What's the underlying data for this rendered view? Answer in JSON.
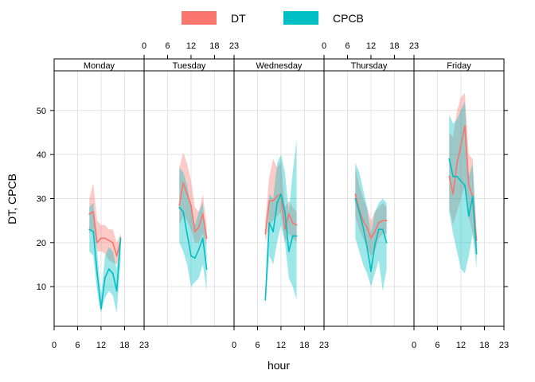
{
  "chart_data": {
    "type": "line",
    "panel_layout": "5 panels side by side, one per weekday, shared y axis",
    "xlabel": "hour",
    "ylabel": "DT, CPCB",
    "xlim": [
      0,
      23
    ],
    "ylim": [
      1,
      59
    ],
    "x_ticks": [
      0,
      6,
      12,
      18,
      23
    ],
    "y_ticks": [
      10,
      20,
      30,
      40,
      50
    ],
    "grid": true,
    "legend_position": "top",
    "legend": [
      {
        "label": "DT",
        "color": "#F8766D"
      },
      {
        "label": "CPCB",
        "color": "#00BFC4"
      }
    ],
    "colors": {
      "DT_line": "#F8766D",
      "DT_band": "#F8766D",
      "CPCB_line": "#00BFC4",
      "CPCB_band": "#00BFC4"
    },
    "panels": [
      {
        "name": "Monday",
        "series": [
          {
            "name": "DT",
            "x": [
              9,
              10,
              11,
              12,
              13,
              14,
              15,
              16,
              17
            ],
            "values": [
              26.5,
              27,
              20,
              21,
              21,
              20.5,
              20,
              17,
              20.5
            ],
            "lower": [
              22,
              23,
              18,
              18,
              17.5,
              16,
              15.5,
              15,
              17.5
            ],
            "upper": [
              30,
              33.5,
              25,
              24,
              24,
              23,
              23,
              20,
              22
            ]
          },
          {
            "name": "CPCB",
            "x": [
              9,
              10,
              11,
              12,
              13,
              14,
              15,
              16,
              17
            ],
            "values": [
              23,
              22.5,
              13,
              5,
              12,
              14,
              13,
              9,
              21
            ],
            "lower": [
              18,
              17,
              9,
              4,
              7.5,
              9,
              8,
              4,
              16
            ],
            "upper": [
              28,
              29,
              18,
              8,
              17,
              19,
              18,
              14,
              22
            ]
          }
        ]
      },
      {
        "name": "Tuesday",
        "series": [
          {
            "name": "DT",
            "x": [
              9,
              10,
              11,
              12,
              13,
              14,
              15,
              16
            ],
            "values": [
              28.5,
              33.5,
              31,
              28.5,
              22.5,
              23.5,
              26.5,
              21
            ],
            "lower": [
              24,
              26,
              25,
              23,
              20,
              20,
              22,
              19
            ],
            "upper": [
              37,
              40.5,
              38,
              34,
              28,
              27,
              31,
              24
            ]
          },
          {
            "name": "CPCB",
            "x": [
              9,
              10,
              11,
              12,
              13,
              14,
              15,
              16
            ],
            "values": [
              28,
              27,
              22,
              17,
              16.5,
              18.5,
              21,
              14
            ],
            "lower": [
              20,
              18,
              15,
              10,
              11,
              12,
              15,
              9
            ],
            "upper": [
              37,
              36,
              33,
              28,
              24,
              27,
              29,
              18
            ]
          }
        ]
      },
      {
        "name": "Wednesday",
        "series": [
          {
            "name": "DT",
            "x": [
              8,
              9,
              10,
              11,
              12,
              13,
              14,
              15,
              16
            ],
            "values": [
              22,
              29.5,
              29.5,
              30.5,
              31,
              23,
              26.5,
              24.5,
              24
            ],
            "lower": [
              20,
              24,
              25,
              26,
              27,
              20,
              22,
              21,
              20
            ],
            "upper": [
              25,
              35,
              39,
              37,
              38.5,
              28,
              29.5,
              28,
              27
            ]
          },
          {
            "name": "CPCB",
            "x": [
              8,
              9,
              10,
              11,
              12,
              13,
              14,
              15,
              16
            ],
            "values": [
              7,
              24.5,
              22.5,
              29,
              31,
              27,
              18,
              21.5,
              21.5
            ],
            "lower": [
              6,
              17,
              15,
              20,
              24,
              20,
              12,
              10,
              7
            ],
            "upper": [
              8,
              31,
              30,
              38,
              40,
              36,
              27,
              36,
              43.5
            ]
          }
        ]
      },
      {
        "name": "Thursday",
        "series": [
          {
            "name": "DT",
            "x": [
              8,
              9,
              10,
              11,
              12,
              13,
              14,
              15,
              16
            ],
            "values": [
              31,
              27.5,
              25,
              23.5,
              21,
              22.5,
              24.5,
              25,
              25
            ],
            "lower": [
              26,
              23,
              21,
              19,
              17,
              18,
              21,
              22,
              22
            ],
            "upper": [
              37,
              33,
              30,
              28,
              25,
              27,
              28,
              29,
              28
            ]
          },
          {
            "name": "CPCB",
            "x": [
              8,
              9,
              10,
              11,
              12,
              13,
              14,
              15,
              16
            ],
            "values": [
              30,
              27,
              23.5,
              19,
              13.5,
              19.5,
              23,
              23,
              20
            ],
            "lower": [
              21,
              18,
              15,
              13,
              10,
              13,
              16,
              9,
              14
            ],
            "upper": [
              38,
              36,
              32,
              28,
              22,
              27,
              29,
              30,
              29
            ]
          }
        ]
      },
      {
        "name": "Friday",
        "series": [
          {
            "name": "DT",
            "x": [
              9,
              10,
              11,
              12,
              13,
              14,
              15,
              16
            ],
            "values": [
              35,
              31,
              38,
              42,
              46.5,
              33,
              30.5,
              20.5
            ],
            "lower": [
              28,
              24,
              27,
              30,
              33,
              26,
              22,
              18
            ],
            "upper": [
              45,
              44,
              50,
              53,
              54,
              40,
              39,
              23
            ]
          },
          {
            "name": "CPCB",
            "x": [
              9,
              10,
              11,
              12,
              13,
              14,
              15,
              16
            ],
            "values": [
              39,
              35,
              35,
              34,
              33,
              26,
              30.5,
              17.5
            ],
            "lower": [
              27,
              22,
              18,
              14,
              13,
              17,
              22,
              14
            ],
            "upper": [
              49,
              47,
              48,
              50,
              52,
              35,
              38,
              20
            ]
          }
        ]
      }
    ]
  }
}
